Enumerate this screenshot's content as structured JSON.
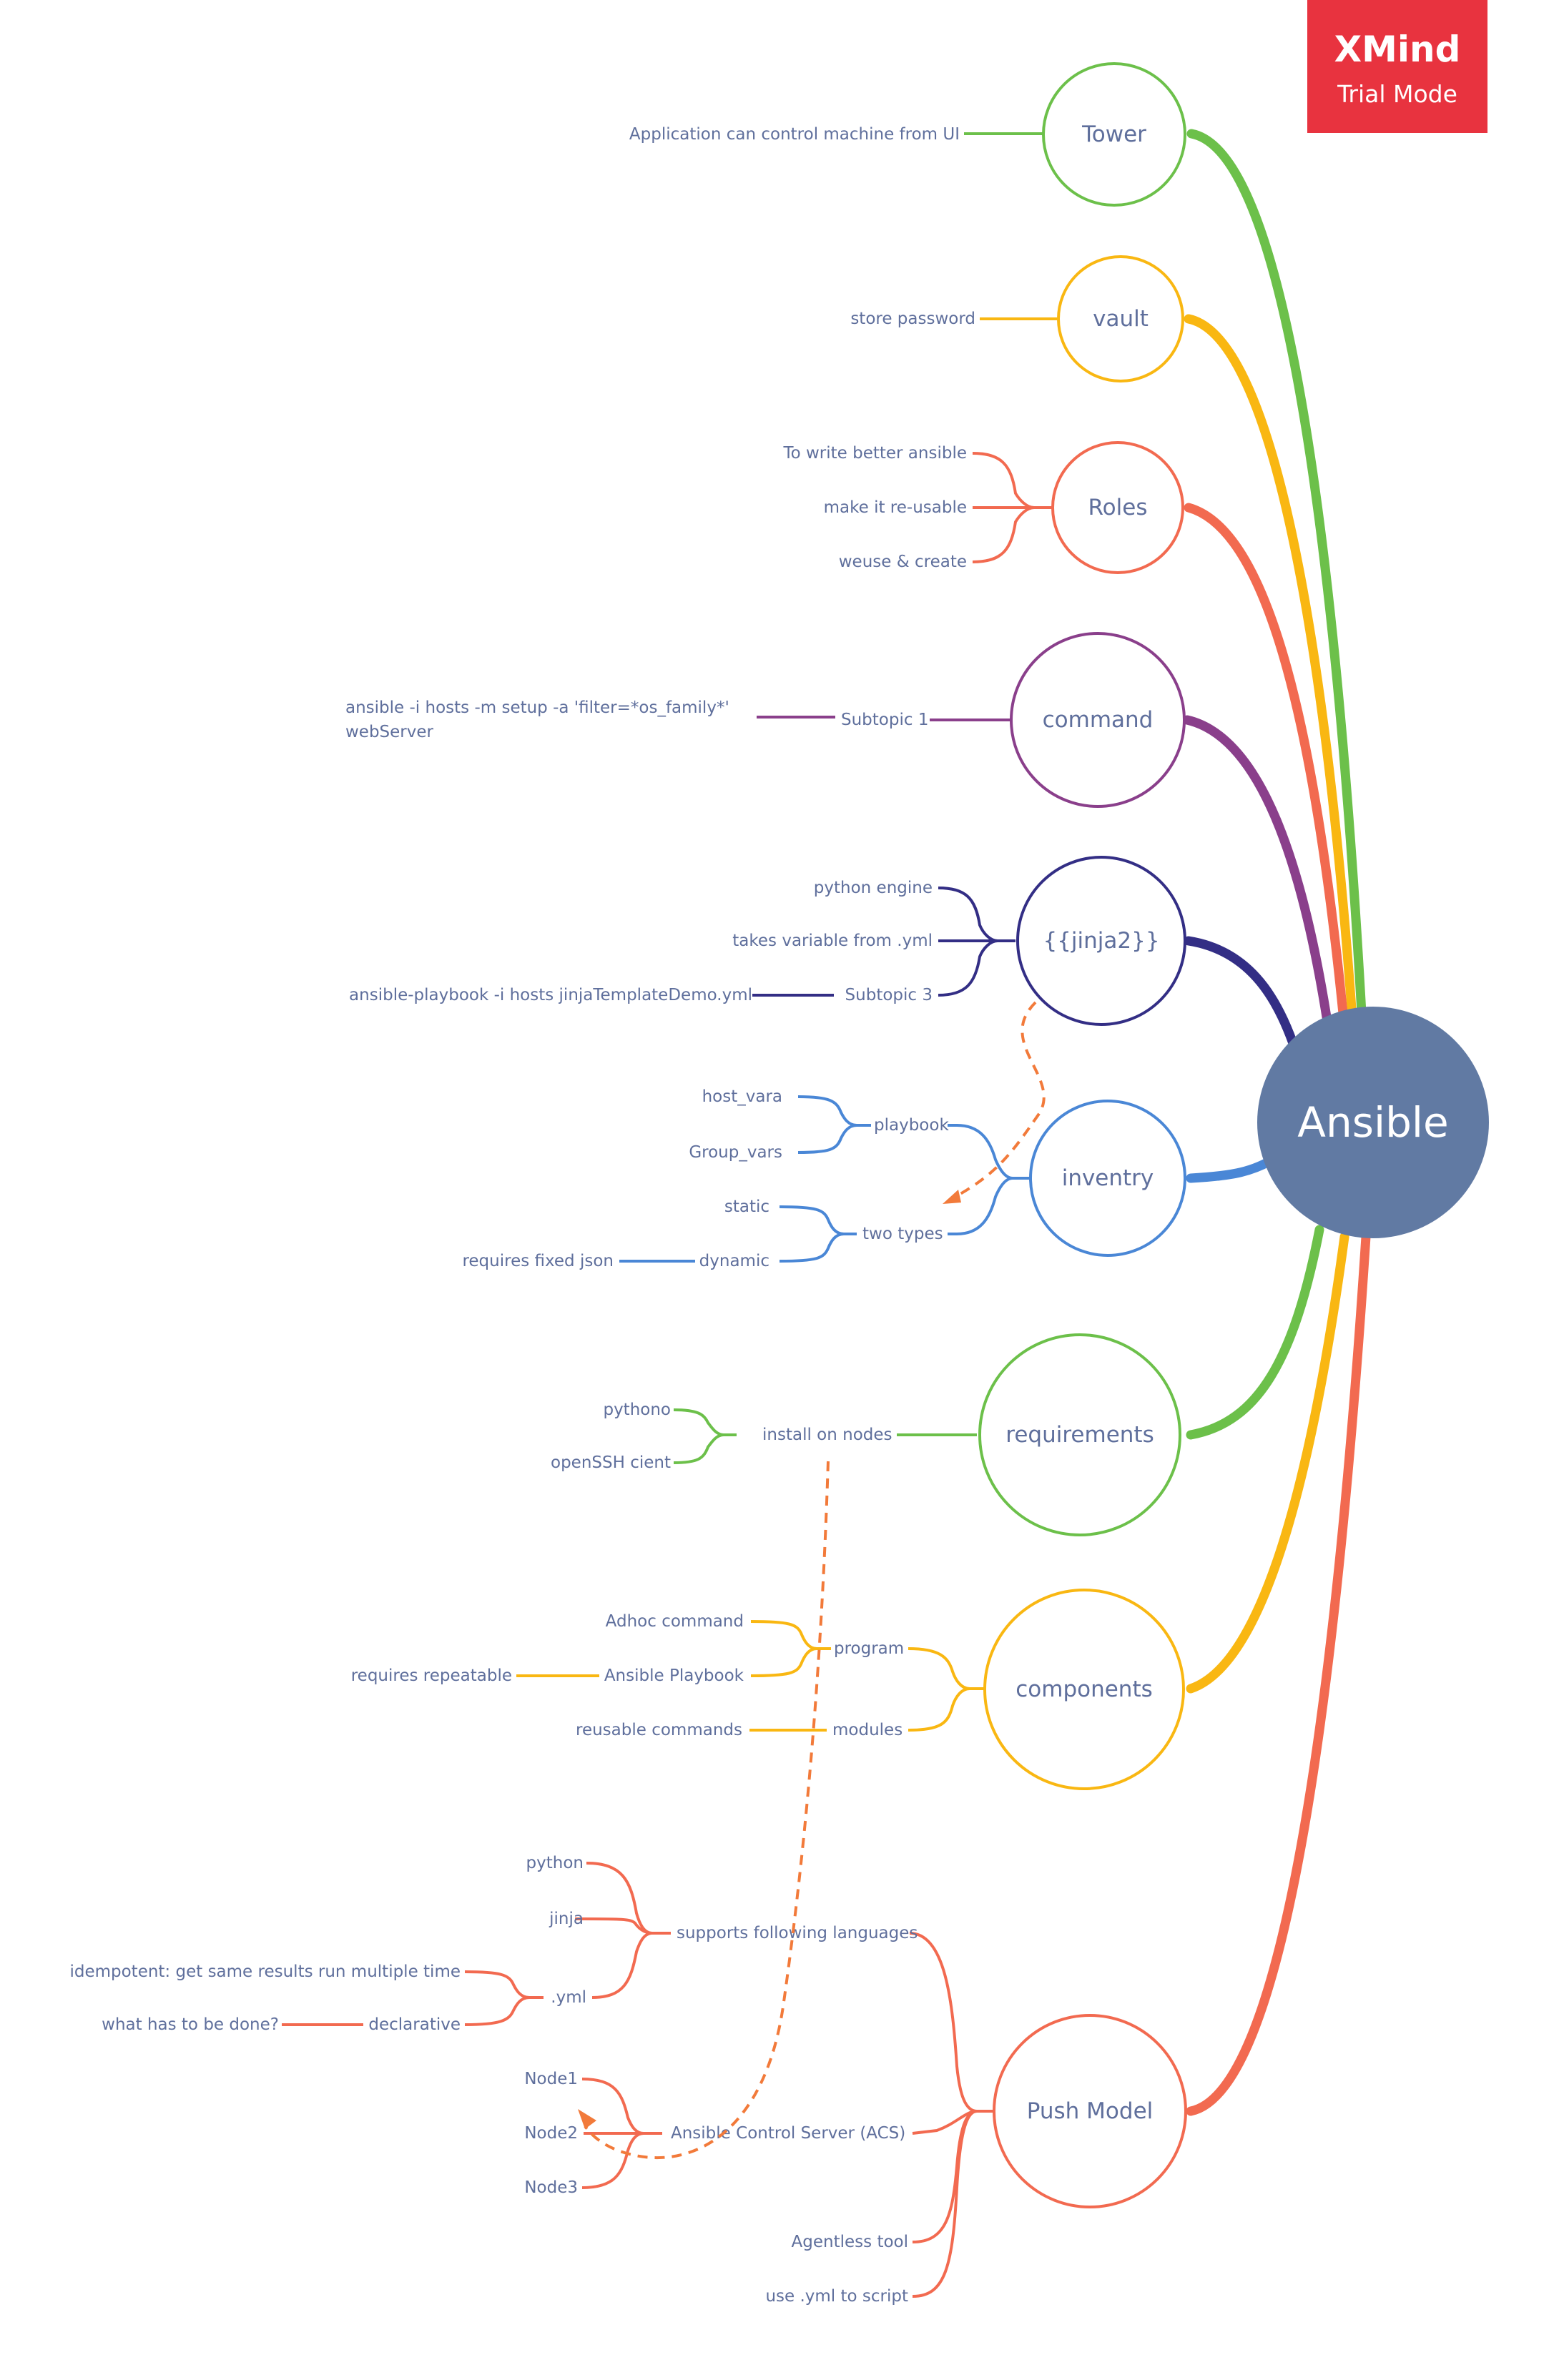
{
  "central": "Ansible",
  "colors": {
    "green": "#6cc04a",
    "yellow": "#f9b712",
    "red": "#f26a50",
    "purple": "#8a3f8b",
    "navy": "#332e85",
    "blue": "#4a87d6",
    "central_fill": "#617aa3",
    "text": "#5f6f9c",
    "badge": "#e8333f"
  },
  "badge": {
    "title": "XMind",
    "subtitle": "Trial Mode"
  },
  "topics": {
    "tower": {
      "label": "Tower",
      "children": {
        "app": "Application can control machine from UI"
      }
    },
    "vault": {
      "label": "vault",
      "children": {
        "store": "store password"
      }
    },
    "roles": {
      "label": "Roles",
      "children": {
        "better": "To write better ansible",
        "reusable": "make it re-usable",
        "reuse": "weuse & create"
      }
    },
    "command": {
      "label": "command",
      "children": {
        "subtopic": "Subtopic 1",
        "setup_line1": "ansible -i hosts -m setup -a 'filter=*os_family*'",
        "setup_line2": "webServer"
      }
    },
    "jinja": {
      "label": "{{jinja2}}",
      "children": {
        "engine": "python engine",
        "takes": "takes variable from .yml",
        "subtopic": "Subtopic 3",
        "playbook_cmd": "ansible-playbook -i hosts jinjaTemplateDemo.yml"
      }
    },
    "inventory": {
      "label": "inventry",
      "children": {
        "playbook": "playbook",
        "host_vars": "host_vara",
        "group_vars": "Group_vars",
        "two_types": "two types",
        "static": "static",
        "dynamic": "dynamic",
        "json": "requires fixed json"
      }
    },
    "requirements": {
      "label": "requirements",
      "children": {
        "install": "install on nodes",
        "python": "pythono",
        "ssh": "openSSH cient"
      }
    },
    "components": {
      "label": "components",
      "children": {
        "program": "program",
        "adhoc": "Adhoc command",
        "playbook": "Ansible Playbook",
        "repeatable": "requires repeatable",
        "modules": "modules",
        "reusable": "reusable commands"
      }
    },
    "push": {
      "label": "Push Model",
      "children": {
        "languages": "supports following languages",
        "python": "python",
        "jinja": "jinja",
        "yml": ".yml",
        "idempotent": "idempotent: get same results run multiple time",
        "declarative": "declarative",
        "what": "what has to be done?",
        "acs": "Ansible Control Server (ACS)",
        "node1": "Node1",
        "node2": "Node2",
        "node3": "Node3",
        "agentless": "Agentless tool",
        "yml_script": "use .yml to script"
      }
    }
  }
}
